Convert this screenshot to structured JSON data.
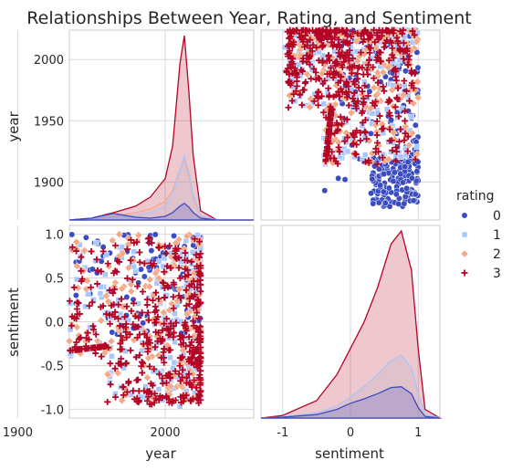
{
  "chart_data": {
    "type": "pairplot",
    "title": "Relationships Between Year, Rating, and Sentiment",
    "variables": [
      "year",
      "sentiment"
    ],
    "hue": "rating",
    "hue_levels": [
      "0",
      "1",
      "2",
      "3"
    ],
    "hue_colors": [
      "#3b4cc0",
      "#aac7fd",
      "#f4a987",
      "#b40426"
    ],
    "hue_markers": [
      "circle",
      "square",
      "diamond",
      "plus"
    ],
    "axes": {
      "year": {
        "label": "year",
        "range": [
          1935,
          2060
        ],
        "ticks": [
          1900,
          2000
        ],
        "diag_ticks": [
          1900,
          1950,
          2000
        ],
        "diag_range": [
          1869,
          2024
        ]
      },
      "sentiment": {
        "label": "sentiment",
        "range": [
          -1.32,
          1.32
        ],
        "ticks": [
          -1,
          0,
          1
        ],
        "y_range": [
          -1.1,
          1.1
        ],
        "y_ticks": [
          1.0,
          0.5,
          0.0,
          -0.5,
          -1.0
        ]
      }
    },
    "kde_year": {
      "x": [
        1935,
        1950,
        1965,
        1980,
        1990,
        2000,
        2005,
        2010,
        2013,
        2016,
        2019,
        2024,
        2035,
        2060
      ],
      "series": [
        {
          "name": "0",
          "values": [
            0,
            2,
            7,
            3,
            2,
            4,
            8,
            15,
            18,
            14,
            8,
            2,
            0,
            0
          ]
        },
        {
          "name": "1",
          "values": [
            0,
            1,
            3,
            5,
            8,
            15,
            28,
            55,
            70,
            52,
            28,
            5,
            0,
            0
          ]
        },
        {
          "name": "2",
          "values": [
            0,
            1,
            4,
            8,
            12,
            20,
            32,
            55,
            65,
            48,
            25,
            4,
            0,
            0
          ]
        },
        {
          "name": "3",
          "values": [
            0,
            2,
            8,
            15,
            25,
            45,
            80,
            170,
            200,
            140,
            70,
            10,
            0,
            0
          ]
        }
      ]
    },
    "kde_sentiment": {
      "x": [
        -1.32,
        -1.0,
        -0.5,
        -0.2,
        0.0,
        0.2,
        0.4,
        0.6,
        0.75,
        0.9,
        1.0,
        1.1,
        1.32
      ],
      "series": [
        {
          "name": "0",
          "values": [
            0,
            1,
            4,
            10,
            17,
            22,
            28,
            35,
            36,
            28,
            12,
            2,
            0
          ]
        },
        {
          "name": "1",
          "values": [
            0,
            1,
            6,
            14,
            24,
            36,
            50,
            66,
            72,
            58,
            28,
            5,
            0
          ]
        },
        {
          "name": "2",
          "values": [
            0,
            1,
            6,
            14,
            24,
            36,
            50,
            66,
            72,
            58,
            28,
            5,
            0
          ]
        },
        {
          "name": "3",
          "values": [
            0,
            3,
            20,
            50,
            80,
            110,
            150,
            200,
            215,
            170,
            80,
            10,
            0
          ]
        }
      ]
    },
    "scatter_note": "dense cloud of several thousand points: year 1880-2024, sentiment -1 to 1",
    "scatter_sample": [
      {
        "year": 1893,
        "sentiment": -0.38,
        "rating": "0"
      },
      {
        "year": 1902,
        "sentiment": -0.08,
        "rating": "0"
      },
      {
        "year": 1903,
        "sentiment": -0.18,
        "rating": "0"
      },
      {
        "year": 1920,
        "sentiment": -0.26,
        "rating": "2"
      },
      {
        "year": 1880,
        "sentiment": 0.58,
        "rating": "0"
      },
      {
        "year": 2010,
        "sentiment": -0.97,
        "rating": "1"
      }
    ],
    "legend": {
      "title": "rating",
      "position": "right"
    }
  }
}
